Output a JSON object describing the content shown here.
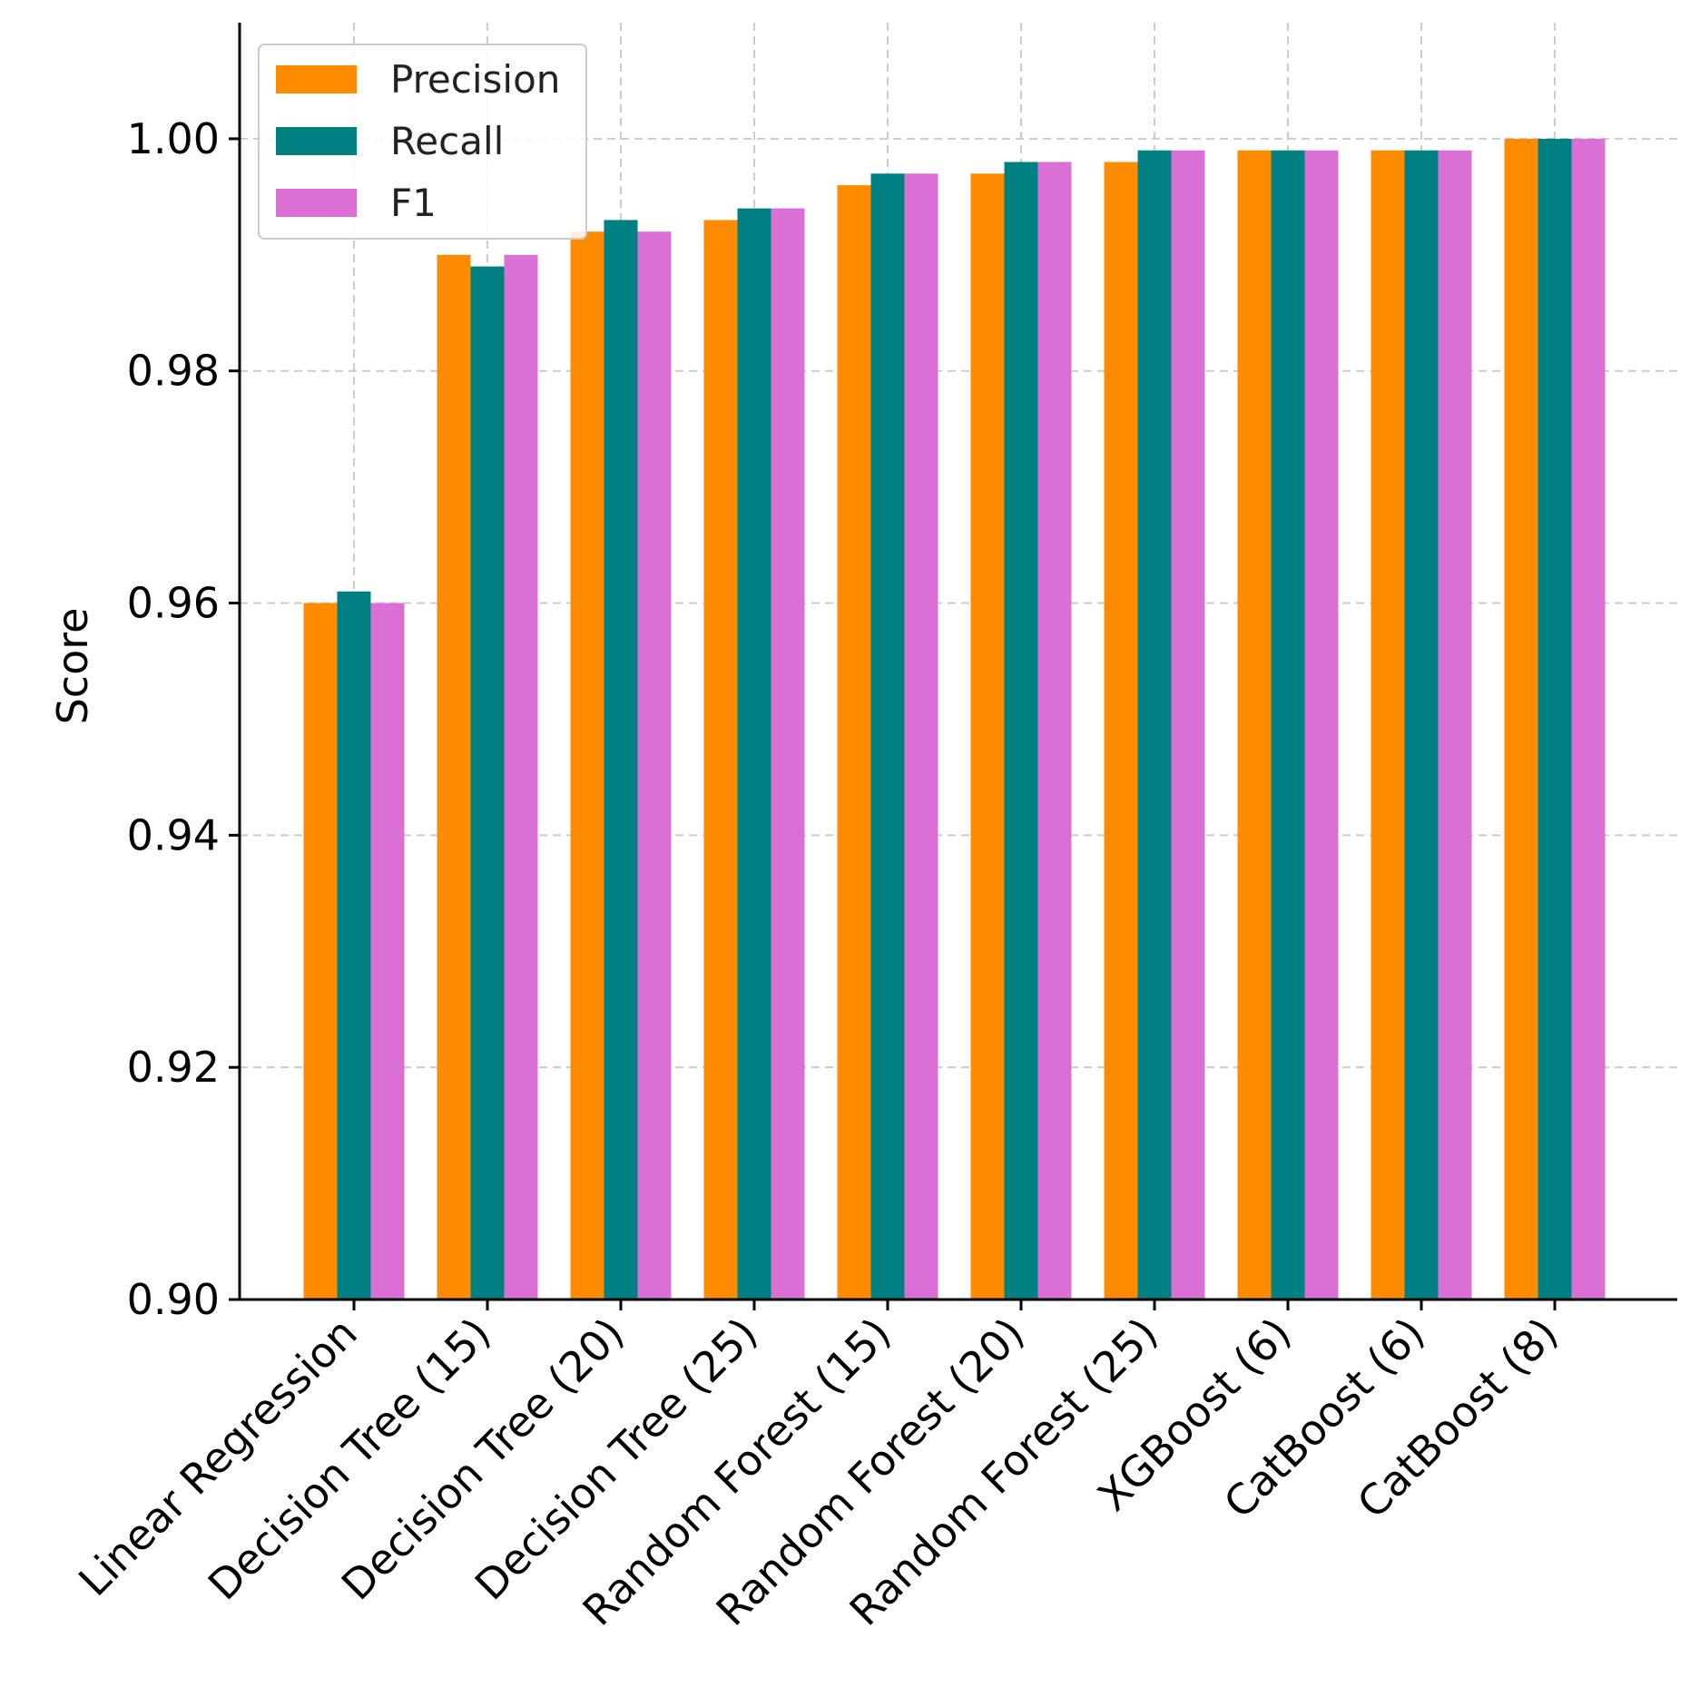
{
  "chart_data": {
    "type": "bar",
    "title": "",
    "xlabel": "",
    "ylabel": "Score",
    "ylim": [
      0.9,
      1.01
    ],
    "yticks": [
      "0.90",
      "0.92",
      "0.94",
      "0.96",
      "0.98",
      "1.00"
    ],
    "grid": true,
    "legend_position": "top-left",
    "categories": [
      "Linear Regression",
      "Decision Tree (15)",
      "Decision Tree (20)",
      "Decision Tree (25)",
      "Random Forest (15)",
      "Random Forest (20)",
      "Random Forest (25)",
      "XGBoost (6)",
      "CatBoost (6)",
      "CatBoost (8)"
    ],
    "series": [
      {
        "name": "Precision",
        "color": "#ff8c00",
        "values": [
          0.96,
          0.99,
          0.992,
          0.993,
          0.996,
          0.997,
          0.998,
          0.999,
          0.999,
          1.0
        ]
      },
      {
        "name": "Recall",
        "color": "#008080",
        "values": [
          0.961,
          0.989,
          0.993,
          0.994,
          0.997,
          0.998,
          0.999,
          0.999,
          0.999,
          1.0
        ]
      },
      {
        "name": "F1",
        "color": "#da70d6",
        "values": [
          0.96,
          0.99,
          0.992,
          0.994,
          0.997,
          0.998,
          0.999,
          0.999,
          0.999,
          1.0
        ]
      }
    ]
  }
}
